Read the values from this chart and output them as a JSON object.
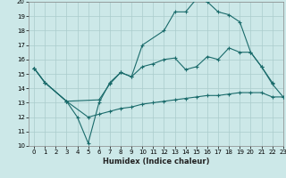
{
  "xlabel": "Humidex (Indice chaleur)",
  "xlim": [
    -0.5,
    23
  ],
  "ylim": [
    10,
    20
  ],
  "yticks": [
    10,
    11,
    12,
    13,
    14,
    15,
    16,
    17,
    18,
    19,
    20
  ],
  "xticks": [
    0,
    1,
    2,
    3,
    4,
    5,
    6,
    7,
    8,
    9,
    10,
    11,
    12,
    13,
    14,
    15,
    16,
    17,
    18,
    19,
    20,
    21,
    22,
    23
  ],
  "bg_color": "#cce8e8",
  "line_color": "#1a6b6b",
  "grid_color": "#aacccc",
  "line1_x": [
    0,
    1,
    3,
    4,
    5,
    6,
    7,
    8,
    9,
    10,
    12,
    13,
    14,
    15,
    16,
    17,
    18,
    19,
    20,
    21,
    22
  ],
  "line1_y": [
    15.4,
    14.4,
    13.1,
    12.0,
    10.2,
    13.0,
    14.4,
    15.1,
    14.8,
    17.0,
    18.0,
    19.3,
    19.3,
    20.2,
    20.0,
    19.3,
    19.1,
    18.6,
    16.5,
    15.5,
    14.4
  ],
  "line2_x": [
    0,
    1,
    3,
    5,
    6,
    7,
    8,
    9,
    10,
    11,
    12,
    13,
    14,
    15,
    16,
    17,
    18,
    19,
    20,
    21,
    22,
    23
  ],
  "line2_y": [
    15.4,
    14.4,
    13.1,
    12.0,
    12.2,
    12.4,
    12.6,
    12.7,
    12.9,
    13.0,
    13.1,
    13.2,
    13.3,
    13.4,
    13.5,
    13.5,
    13.6,
    13.7,
    13.7,
    13.7,
    13.4,
    13.4
  ],
  "line3_x": [
    0,
    1,
    3,
    6,
    7,
    8,
    9,
    10,
    11,
    12,
    13,
    14,
    15,
    16,
    17,
    18,
    19,
    20,
    21,
    22,
    23
  ],
  "line3_y": [
    15.4,
    14.4,
    13.1,
    13.2,
    14.3,
    15.1,
    14.8,
    15.5,
    15.7,
    16.0,
    16.1,
    15.3,
    15.5,
    16.2,
    16.0,
    16.8,
    16.5,
    16.5,
    15.5,
    14.3,
    13.4
  ],
  "axis_fontsize": 6,
  "tick_fontsize": 5
}
